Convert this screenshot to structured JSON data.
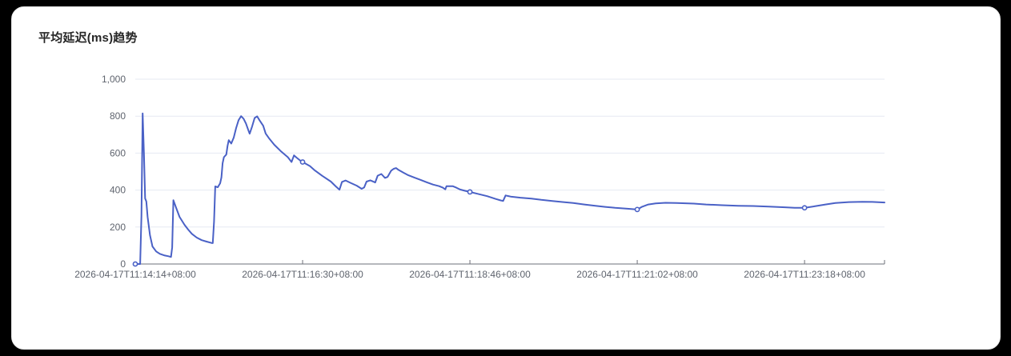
{
  "card": {
    "title": "平均延迟(ms)趋势"
  },
  "chart_data": {
    "type": "line",
    "title": "平均延迟(ms)趋势",
    "xlabel": "",
    "ylabel": "",
    "ylim": [
      0,
      1000
    ],
    "grid": true,
    "legend": "none",
    "line_color": "#4a61c6",
    "marker_fill": "#ffffff",
    "grid_color": "#e6e9f2",
    "axis_color": "#6e7079",
    "label_color": "#5f646e",
    "t_max": 609,
    "y_ticks": [
      {
        "label": "0",
        "value": 0
      },
      {
        "label": "200",
        "value": 200
      },
      {
        "label": "400",
        "value": 400
      },
      {
        "label": "600",
        "value": 600
      },
      {
        "label": "800",
        "value": 800
      },
      {
        "label": "1,000",
        "value": 1000
      }
    ],
    "x_ticks": [
      {
        "label": "2026-04-17T11:14:14+08:00",
        "t": 0
      },
      {
        "label": "2026-04-17T11:16:30+08:00",
        "t": 136
      },
      {
        "label": "2026-04-17T11:18:46+08:00",
        "t": 272
      },
      {
        "label": "2026-04-17T11:21:02+08:00",
        "t": 408
      },
      {
        "label": "2026-04-17T11:23:18+08:00",
        "t": 544
      }
    ],
    "marker_t": [
      0,
      136,
      272,
      408,
      544
    ],
    "points": [
      [
        0,
        0
      ],
      [
        4,
        0
      ],
      [
        5,
        260
      ],
      [
        6,
        815
      ],
      [
        7,
        600
      ],
      [
        8,
        355
      ],
      [
        9,
        338
      ],
      [
        10,
        255
      ],
      [
        12,
        155
      ],
      [
        14,
        95
      ],
      [
        17,
        68
      ],
      [
        20,
        55
      ],
      [
        24,
        46
      ],
      [
        27,
        42
      ],
      [
        29,
        38
      ],
      [
        30,
        90
      ],
      [
        31,
        345
      ],
      [
        33,
        308
      ],
      [
        36,
        255
      ],
      [
        40,
        212
      ],
      [
        43,
        186
      ],
      [
        46,
        163
      ],
      [
        50,
        143
      ],
      [
        54,
        129
      ],
      [
        58,
        121
      ],
      [
        62,
        114
      ],
      [
        63,
        113
      ],
      [
        64,
        230
      ],
      [
        65,
        420
      ],
      [
        67,
        415
      ],
      [
        69,
        437
      ],
      [
        70,
        468
      ],
      [
        71,
        545
      ],
      [
        72,
        578
      ],
      [
        74,
        592
      ],
      [
        75,
        640
      ],
      [
        76,
        670
      ],
      [
        78,
        652
      ],
      [
        80,
        684
      ],
      [
        82,
        736
      ],
      [
        84,
        779
      ],
      [
        86,
        800
      ],
      [
        88,
        786
      ],
      [
        90,
        760
      ],
      [
        92,
        722
      ],
      [
        93,
        705
      ],
      [
        95,
        745
      ],
      [
        97,
        790
      ],
      [
        99,
        799
      ],
      [
        101,
        778
      ],
      [
        104,
        748
      ],
      [
        106,
        706
      ],
      [
        109,
        678
      ],
      [
        113,
        645
      ],
      [
        118,
        612
      ],
      [
        124,
        578
      ],
      [
        127,
        552
      ],
      [
        129,
        588
      ],
      [
        131,
        576
      ],
      [
        134,
        560
      ],
      [
        136,
        552
      ],
      [
        142,
        530
      ],
      [
        146,
        506
      ],
      [
        152,
        477
      ],
      [
        159,
        446
      ],
      [
        163,
        420
      ],
      [
        166,
        402
      ],
      [
        168,
        444
      ],
      [
        171,
        452
      ],
      [
        175,
        439
      ],
      [
        180,
        424
      ],
      [
        184,
        407
      ],
      [
        186,
        414
      ],
      [
        188,
        446
      ],
      [
        191,
        453
      ],
      [
        193,
        447
      ],
      [
        195,
        441
      ],
      [
        197,
        478
      ],
      [
        200,
        487
      ],
      [
        203,
        466
      ],
      [
        205,
        471
      ],
      [
        208,
        505
      ],
      [
        210,
        515
      ],
      [
        212,
        519
      ],
      [
        214,
        509
      ],
      [
        218,
        494
      ],
      [
        222,
        480
      ],
      [
        227,
        467
      ],
      [
        232,
        455
      ],
      [
        237,
        442
      ],
      [
        242,
        430
      ],
      [
        247,
        421
      ],
      [
        250,
        413
      ],
      [
        252,
        404
      ],
      [
        253,
        421
      ],
      [
        258,
        421
      ],
      [
        261,
        413
      ],
      [
        264,
        403
      ],
      [
        268,
        396
      ],
      [
        272,
        390
      ],
      [
        278,
        380
      ],
      [
        286,
        367
      ],
      [
        293,
        352
      ],
      [
        297,
        344
      ],
      [
        299,
        341
      ],
      [
        301,
        371
      ],
      [
        305,
        365
      ],
      [
        313,
        359
      ],
      [
        322,
        354
      ],
      [
        330,
        347
      ],
      [
        339,
        341
      ],
      [
        348,
        335
      ],
      [
        356,
        330
      ],
      [
        365,
        322
      ],
      [
        374,
        315
      ],
      [
        382,
        309
      ],
      [
        390,
        304
      ],
      [
        400,
        299
      ],
      [
        406,
        296
      ],
      [
        408,
        295
      ],
      [
        412,
        310
      ],
      [
        417,
        322
      ],
      [
        423,
        328
      ],
      [
        431,
        331
      ],
      [
        440,
        330
      ],
      [
        454,
        327
      ],
      [
        464,
        322
      ],
      [
        477,
        318
      ],
      [
        490,
        315
      ],
      [
        502,
        314
      ],
      [
        515,
        311
      ],
      [
        528,
        307
      ],
      [
        536,
        304
      ],
      [
        544,
        304
      ],
      [
        548,
        308
      ],
      [
        552,
        312
      ],
      [
        561,
        322
      ],
      [
        569,
        330
      ],
      [
        580,
        335
      ],
      [
        591,
        337
      ],
      [
        599,
        336
      ],
      [
        609,
        333
      ]
    ]
  }
}
